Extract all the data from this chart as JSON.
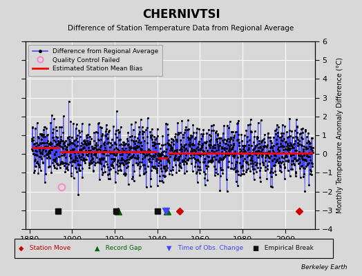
{
  "title": "CHERNIVTSI",
  "subtitle": "Difference of Station Temperature Data from Regional Average",
  "ylabel": "Monthly Temperature Anomaly Difference (°C)",
  "xlim": [
    1878,
    2014
  ],
  "ylim": [
    -4,
    6
  ],
  "yticks": [
    -4,
    -3,
    -2,
    -1,
    0,
    1,
    2,
    3,
    4,
    5,
    6
  ],
  "xticks": [
    1880,
    1900,
    1920,
    1940,
    1960,
    1980,
    2000
  ],
  "background_color": "#d8d8d8",
  "plot_bg_color": "#d8d8d8",
  "grid_color": "#ffffff",
  "data_line_color": "#4444ff",
  "data_marker_color": "#000000",
  "bias_line_color": "#ff0000",
  "station_move_color": "#cc0000",
  "record_gap_color": "#006600",
  "obs_change_color": "#4444ff",
  "empirical_break_color": "#111111",
  "qc_failed_color": "#ff88cc",
  "seed": 42,
  "segments": [
    {
      "start": 1881.0,
      "end": 1893.9,
      "bias": 0.35
    },
    {
      "start": 1894.0,
      "end": 1920.9,
      "bias": 0.12
    },
    {
      "start": 1921.0,
      "end": 1939.9,
      "bias": 0.12
    },
    {
      "start": 1940.0,
      "end": 1944.9,
      "bias": -0.22
    },
    {
      "start": 1945.0,
      "end": 2013.0,
      "bias": 0.05
    }
  ],
  "station_moves": [
    1950.5,
    2006.5
  ],
  "record_gaps": [
    1921.5,
    1944.5
  ],
  "obs_changes": [
    1944.0
  ],
  "empirical_breaks": [
    1893.5,
    1920.5,
    1940.0
  ],
  "qc_failed_x": 1895.0,
  "qc_failed_y": -1.75,
  "marker_y": -3.05,
  "berkeley_earth_text": "Berkeley Earth"
}
